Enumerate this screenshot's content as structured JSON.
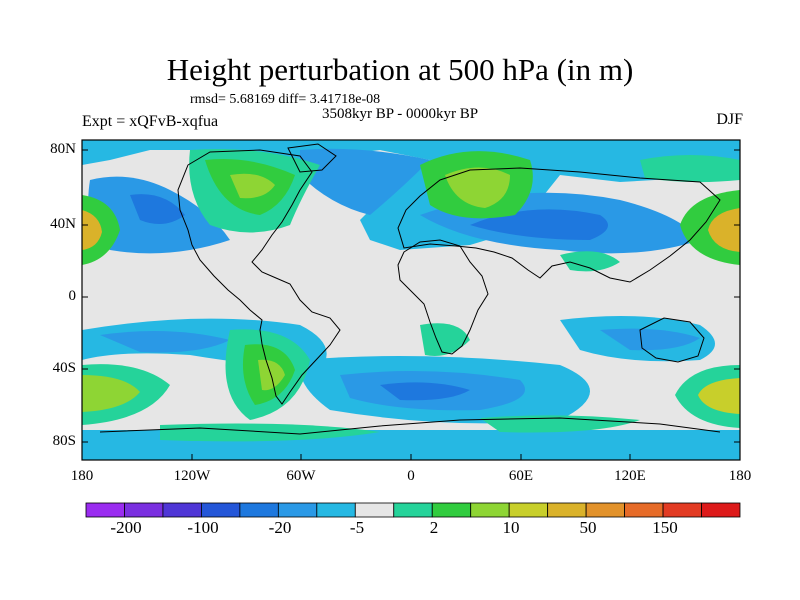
{
  "title": "Height perturbation at 500 hPa (in m)",
  "stats_line": "rmsd= 5.68169 diff= 3.41718e-08",
  "period_line": "3508kyr BP - 0000kyr BP",
  "expt_label": "Expt = xQFvB-xqfua",
  "season_label": "DJF",
  "lat_labels": [
    "80N",
    "40N",
    "0",
    "40S",
    "80S"
  ],
  "lon_labels": [
    "180",
    "120W",
    "60W",
    "0",
    "60E",
    "120E",
    "180"
  ],
  "colorbar": {
    "labels": [
      "-200",
      "-100",
      "-20",
      "-5",
      "2",
      "10",
      "50",
      "150"
    ],
    "colors": [
      "#9a2cf0",
      "#7a2fe0",
      "#4f36d6",
      "#2456d8",
      "#1e78de",
      "#2a99e6",
      "#26b8e3",
      "#e6e6e6",
      "#25d39a",
      "#31cc3f",
      "#8ed534",
      "#c8cf2b",
      "#dab22a",
      "#e2922b",
      "#e66b28",
      "#e23b23",
      "#dd1a1a"
    ]
  },
  "map_colors": {
    "ocean_bg": "#e6e6e6",
    "neg_light": "#26b8e3",
    "neg_mid": "#2a99e6",
    "neg_strong": "#1e78de",
    "pos_light": "#25d39a",
    "pos_mid": "#31cc3f",
    "pos_strong": "#8ed534",
    "pos_core": "#c8cf2b",
    "pos_max": "#dab22a"
  }
}
